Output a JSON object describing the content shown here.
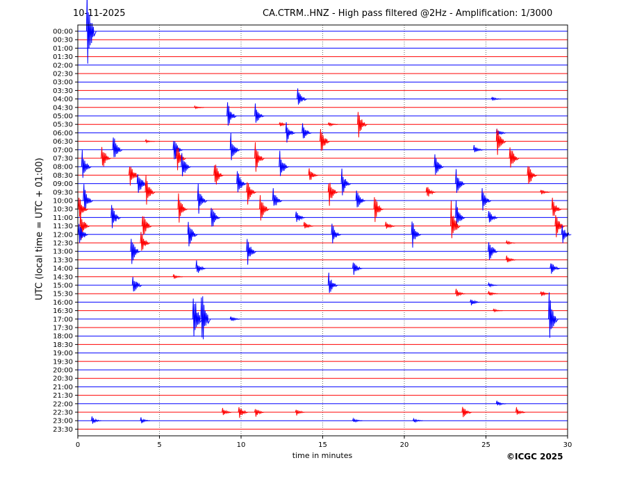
{
  "header": {
    "date": "10-11-2025",
    "title": "CA.CTRM..HNZ - High pass filtered @2Hz - Amplification: 1/3000"
  },
  "footer": {
    "copyright": "©ICGC 2025"
  },
  "chart_data": {
    "type": "line",
    "title": "CA.CTRM..HNZ - High pass filtered @2Hz - Amplification: 1/3000",
    "xlabel": "time in minutes",
    "ylabel": "UTC (local time = UTC + 01:00)",
    "xlim": [
      0,
      30
    ],
    "x_ticks": [
      0,
      5,
      10,
      15,
      20,
      25,
      30
    ],
    "grid": "vertical dotted at 5, 10, 15, 20, 25",
    "series_colors": [
      "#0000ff",
      "#ff0000"
    ],
    "rows": [
      "00:00",
      "00:30",
      "01:00",
      "01:30",
      "02:00",
      "02:30",
      "03:00",
      "03:30",
      "04:00",
      "04:30",
      "05:00",
      "05:30",
      "06:00",
      "06:30",
      "07:00",
      "07:30",
      "08:00",
      "08:30",
      "09:00",
      "09:30",
      "10:00",
      "10:30",
      "11:00",
      "11:30",
      "12:00",
      "12:30",
      "13:00",
      "13:30",
      "14:00",
      "14:30",
      "15:00",
      "15:30",
      "16:00",
      "16:30",
      "17:00",
      "17:30",
      "18:00",
      "18:30",
      "19:00",
      "19:30",
      "20:00",
      "20:30",
      "21:00",
      "21:30",
      "22:00",
      "22:30",
      "23:00",
      "23:30"
    ],
    "events": [
      {
        "row": 0,
        "t": 0.7,
        "amp": 6
      },
      {
        "row": 8,
        "t": 13.6,
        "amp": 1.5
      },
      {
        "row": 8,
        "t": 25.5,
        "amp": 0.3
      },
      {
        "row": 9,
        "t": 7.3,
        "amp": 0.2
      },
      {
        "row": 10,
        "t": 9.3,
        "amp": 2
      },
      {
        "row": 10,
        "t": 11,
        "amp": 1.5
      },
      {
        "row": 11,
        "t": 12.5,
        "amp": 0.3
      },
      {
        "row": 11,
        "t": 15.5,
        "amp": 0.3
      },
      {
        "row": 11,
        "t": 17.3,
        "amp": 2
      },
      {
        "row": 12,
        "t": 12.9,
        "amp": 1.5
      },
      {
        "row": 12,
        "t": 13.9,
        "amp": 1.5
      },
      {
        "row": 12,
        "t": 25.8,
        "amp": 0.6
      },
      {
        "row": 13,
        "t": 4.3,
        "amp": 0.2
      },
      {
        "row": 13,
        "t": 15,
        "amp": 2
      },
      {
        "row": 13,
        "t": 25.8,
        "amp": 2
      },
      {
        "row": 14,
        "t": 2.3,
        "amp": 2
      },
      {
        "row": 14,
        "t": 6,
        "amp": 2
      },
      {
        "row": 14,
        "t": 9.5,
        "amp": 2
      },
      {
        "row": 14,
        "t": 24.4,
        "amp": 0.6
      },
      {
        "row": 15,
        "t": 1.6,
        "amp": 2
      },
      {
        "row": 15,
        "t": 6.2,
        "amp": 2
      },
      {
        "row": 15,
        "t": 11,
        "amp": 2
      },
      {
        "row": 15,
        "t": 26.6,
        "amp": 2
      },
      {
        "row": 16,
        "t": 0.4,
        "amp": 2
      },
      {
        "row": 16,
        "t": 6.5,
        "amp": 2
      },
      {
        "row": 16,
        "t": 12.5,
        "amp": 2
      },
      {
        "row": 16,
        "t": 22,
        "amp": 2
      },
      {
        "row": 17,
        "t": 3.3,
        "amp": 2
      },
      {
        "row": 17,
        "t": 8.5,
        "amp": 2
      },
      {
        "row": 17,
        "t": 14.3,
        "amp": 1
      },
      {
        "row": 17,
        "t": 27.7,
        "amp": 2
      },
      {
        "row": 18,
        "t": 3.8,
        "amp": 2
      },
      {
        "row": 18,
        "t": 9.9,
        "amp": 2
      },
      {
        "row": 18,
        "t": 16.3,
        "amp": 2
      },
      {
        "row": 18,
        "t": 23.3,
        "amp": 2
      },
      {
        "row": 19,
        "t": 4.3,
        "amp": 2
      },
      {
        "row": 19,
        "t": 10.5,
        "amp": 2
      },
      {
        "row": 19,
        "t": 15.5,
        "amp": 2
      },
      {
        "row": 19,
        "t": 21.5,
        "amp": 1
      },
      {
        "row": 19,
        "t": 28.5,
        "amp": 0.4
      },
      {
        "row": 20,
        "t": 0.5,
        "amp": 2
      },
      {
        "row": 20,
        "t": 7.5,
        "amp": 2
      },
      {
        "row": 20,
        "t": 12.1,
        "amp": 1.5
      },
      {
        "row": 20,
        "t": 17.2,
        "amp": 1.5
      },
      {
        "row": 20,
        "t": 24.9,
        "amp": 2
      },
      {
        "row": 21,
        "t": 0.2,
        "amp": 2
      },
      {
        "row": 21,
        "t": 6.3,
        "amp": 2
      },
      {
        "row": 21,
        "t": 11.3,
        "amp": 2
      },
      {
        "row": 21,
        "t": 18.3,
        "amp": 2
      },
      {
        "row": 21,
        "t": 29.2,
        "amp": 1.5
      },
      {
        "row": 22,
        "t": 2.2,
        "amp": 2
      },
      {
        "row": 22,
        "t": 8.3,
        "amp": 2
      },
      {
        "row": 22,
        "t": 13.5,
        "amp": 1
      },
      {
        "row": 22,
        "t": 23.3,
        "amp": 2
      },
      {
        "row": 22,
        "t": 25.3,
        "amp": 1
      },
      {
        "row": 23,
        "t": 0.3,
        "amp": 2
      },
      {
        "row": 23,
        "t": 4.1,
        "amp": 2
      },
      {
        "row": 23,
        "t": 14,
        "amp": 0.6
      },
      {
        "row": 23,
        "t": 19,
        "amp": 0.6
      },
      {
        "row": 23,
        "t": 23,
        "amp": 3
      },
      {
        "row": 23,
        "t": 29.4,
        "amp": 2
      },
      {
        "row": 24,
        "t": 0.2,
        "amp": 2
      },
      {
        "row": 24,
        "t": 6.9,
        "amp": 2
      },
      {
        "row": 24,
        "t": 15.7,
        "amp": 1.5
      },
      {
        "row": 24,
        "t": 20.6,
        "amp": 2
      },
      {
        "row": 24,
        "t": 29.8,
        "amp": 1.3
      },
      {
        "row": 25,
        "t": 4,
        "amp": 1.5
      },
      {
        "row": 25,
        "t": 26.4,
        "amp": 0.3
      },
      {
        "row": 26,
        "t": 3.4,
        "amp": 2
      },
      {
        "row": 26,
        "t": 10.5,
        "amp": 2
      },
      {
        "row": 26,
        "t": 25.3,
        "amp": 2
      },
      {
        "row": 27,
        "t": 26.4,
        "amp": 0.5
      },
      {
        "row": 28,
        "t": 7.4,
        "amp": 1
      },
      {
        "row": 28,
        "t": 17,
        "amp": 1
      },
      {
        "row": 28,
        "t": 29.1,
        "amp": 1
      },
      {
        "row": 29,
        "t": 6,
        "amp": 0.3
      },
      {
        "row": 30,
        "t": 3.5,
        "amp": 1.5
      },
      {
        "row": 30,
        "t": 15.5,
        "amp": 1.5
      },
      {
        "row": 30,
        "t": 25.3,
        "amp": 0.3
      },
      {
        "row": 31,
        "t": 23.3,
        "amp": 0.6
      },
      {
        "row": 31,
        "t": 25.3,
        "amp": 0.4
      },
      {
        "row": 31,
        "t": 28.5,
        "amp": 0.5
      },
      {
        "row": 32,
        "t": 24.2,
        "amp": 0.5
      },
      {
        "row": 33,
        "t": 25.6,
        "amp": 0.2
      },
      {
        "row": 34,
        "t": 7.2,
        "amp": 4.5
      },
      {
        "row": 34,
        "t": 7.7,
        "amp": 4.5
      },
      {
        "row": 34,
        "t": 9.5,
        "amp": 0.4
      },
      {
        "row": 34,
        "t": 29,
        "amp": 3.5
      },
      {
        "row": 44,
        "t": 25.8,
        "amp": 0.4
      },
      {
        "row": 45,
        "t": 9,
        "amp": 0.5
      },
      {
        "row": 45,
        "t": 10,
        "amp": 1
      },
      {
        "row": 45,
        "t": 11,
        "amp": 0.7
      },
      {
        "row": 45,
        "t": 13.5,
        "amp": 0.5
      },
      {
        "row": 45,
        "t": 23.7,
        "amp": 1
      },
      {
        "row": 45,
        "t": 27,
        "amp": 0.6
      },
      {
        "row": 46,
        "t": 1,
        "amp": 0.5
      },
      {
        "row": 46,
        "t": 4,
        "amp": 0.4
      },
      {
        "row": 46,
        "t": 17,
        "amp": 0.3
      },
      {
        "row": 46,
        "t": 20.7,
        "amp": 0.3
      }
    ]
  }
}
